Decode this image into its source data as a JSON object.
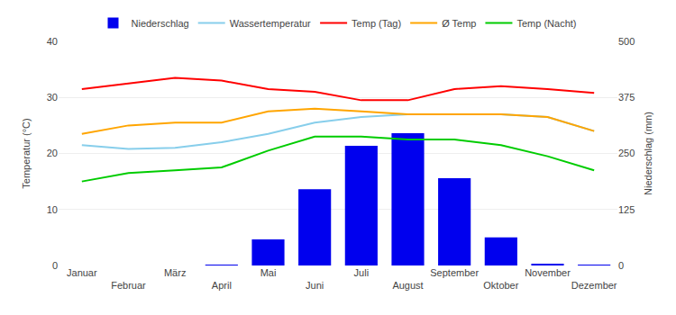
{
  "chart_data": {
    "type": "bar",
    "categories": [
      "Januar",
      "Februar",
      "März",
      "April",
      "Mai",
      "Juni",
      "Juli",
      "August",
      "September",
      "Oktober",
      "November",
      "Dezember"
    ],
    "series": [
      {
        "name": "Niederschlag",
        "type": "bar",
        "axis": "y2",
        "color": "#0000EE",
        "values": [
          0,
          0,
          0,
          1,
          58,
          170,
          267,
          295,
          195,
          63,
          3,
          1
        ]
      },
      {
        "name": "Wassertemperatur",
        "type": "line",
        "color": "#87CEEB",
        "values": [
          21.5,
          20.8,
          21.0,
          22.0,
          23.5,
          25.5,
          26.5,
          27.0,
          27.0,
          27.0,
          26.5,
          24.0
        ]
      },
      {
        "name": "Temp (Tag)",
        "type": "line",
        "color": "#FF0000",
        "values": [
          31.5,
          32.5,
          33.5,
          33.0,
          31.5,
          31.0,
          29.5,
          29.5,
          31.5,
          32.0,
          31.5,
          30.8
        ]
      },
      {
        "name": "Ø Temp",
        "type": "line",
        "color": "#FFA500",
        "values": [
          23.5,
          25.0,
          25.5,
          25.5,
          27.5,
          28.0,
          27.5,
          27.0,
          27.0,
          27.0,
          26.5,
          24.0
        ]
      },
      {
        "name": "Temp (Nacht)",
        "type": "line",
        "color": "#00CC00",
        "values": [
          15.0,
          16.5,
          17.0,
          17.5,
          20.5,
          23.0,
          23.0,
          22.5,
          22.5,
          21.5,
          19.5,
          17.0
        ]
      }
    ],
    "ylabel": "Temperatur (°C)",
    "y2label": "Niederschlag (mm)",
    "ylim": [
      0,
      40
    ],
    "yticks": [
      0,
      10,
      20,
      30,
      40
    ],
    "y2lim": [
      0,
      500
    ],
    "y2ticks": [
      0,
      125,
      250,
      375,
      500
    ],
    "grid": true,
    "legend": "top"
  }
}
